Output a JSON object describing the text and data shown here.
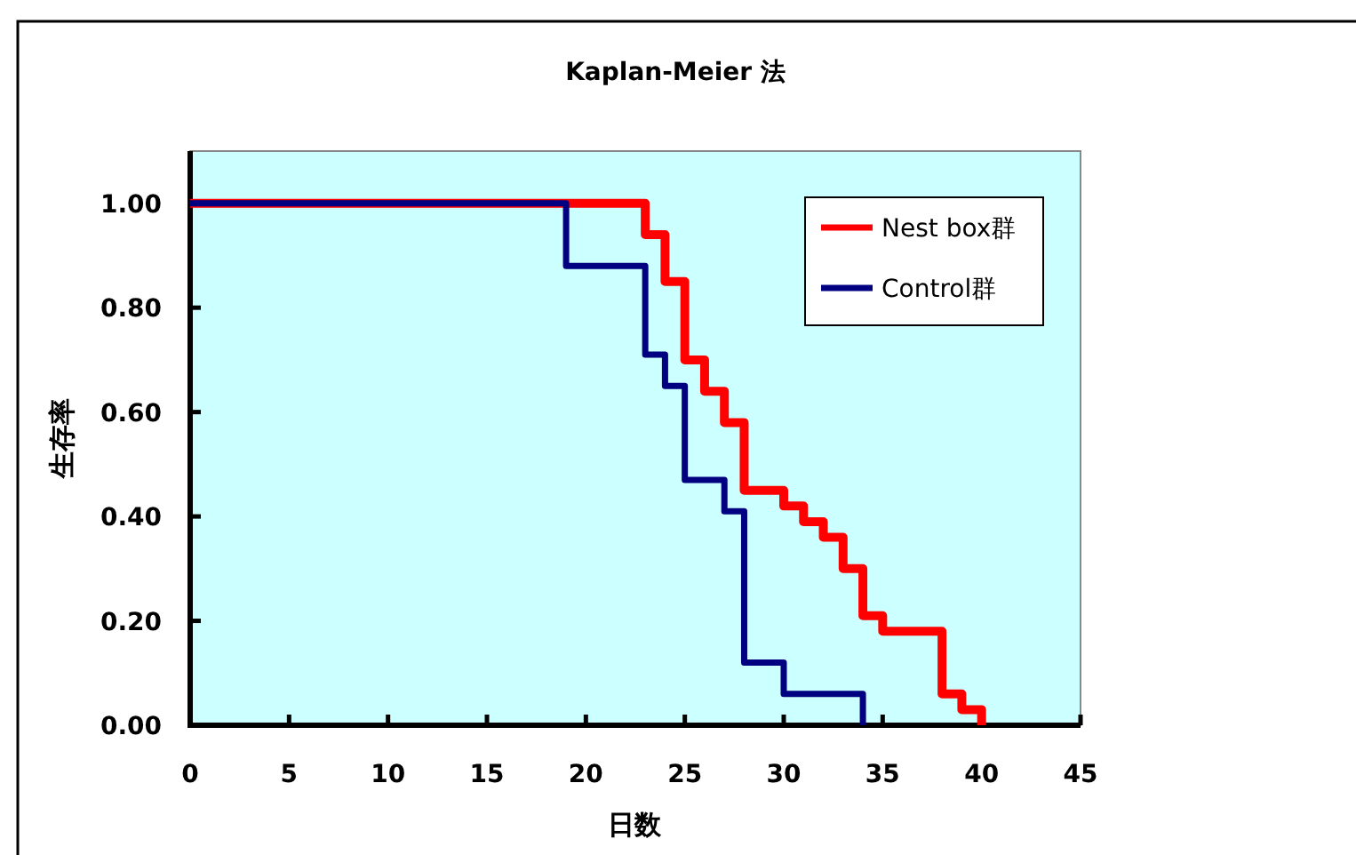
{
  "chart_data": {
    "type": "step",
    "title": "Kaplan-Meier 法",
    "xlabel": "日数",
    "ylabel": "生存率",
    "xlim": [
      0,
      45
    ],
    "xticks": [
      0,
      5,
      10,
      15,
      20,
      25,
      30,
      35,
      40,
      45
    ],
    "ylim": [
      0,
      1.1
    ],
    "yticks": [
      {
        "value": 0,
        "label": "0.00"
      },
      {
        "value": 0.2,
        "label": "0.20"
      },
      {
        "value": 0.4,
        "label": "0.40"
      },
      {
        "value": 0.6,
        "label": "0.60"
      },
      {
        "value": 0.8,
        "label": "0.80"
      },
      {
        "value": 1,
        "label": "1.00"
      }
    ],
    "grid": false,
    "legend": "top right",
    "line_style": "solid",
    "series": [
      {
        "name": "Nest box群",
        "color": "#ff0000",
        "x": [
          0,
          23,
          24,
          25,
          26,
          27,
          28,
          30,
          31,
          32,
          33,
          34,
          35,
          38,
          39,
          40
        ],
        "values": [
          1,
          0.94,
          0.85,
          0.7,
          0.64,
          0.58,
          0.45,
          0.42,
          0.39,
          0.36,
          0.3,
          0.21,
          0.18,
          0.06,
          0.03,
          0
        ]
      },
      {
        "name": "Control群",
        "color": "#000080",
        "x": [
          0,
          19,
          23,
          24,
          25,
          27,
          28,
          30,
          34
        ],
        "values": [
          1,
          0.88,
          0.71,
          0.65,
          0.47,
          0.41,
          0.12,
          0.06,
          0
        ]
      }
    ]
  }
}
